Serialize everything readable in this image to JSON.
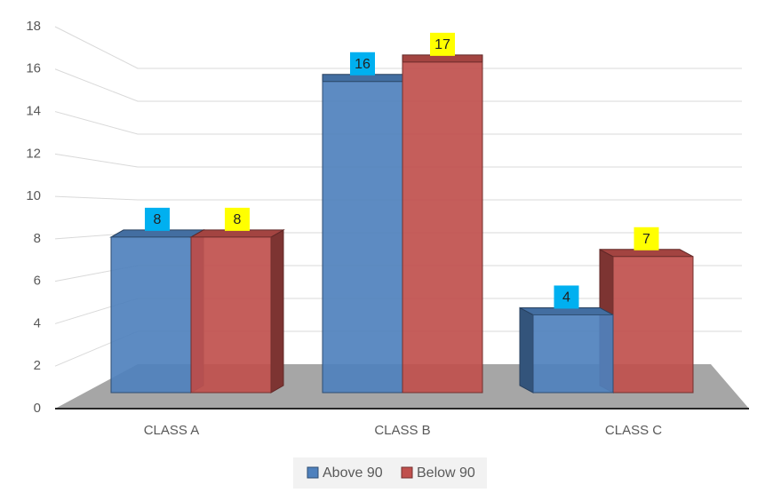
{
  "chart_data": {
    "type": "bar3d",
    "categories": [
      "CLASS A",
      "CLASS B",
      "CLASS C"
    ],
    "series": [
      {
        "name": "Above 90",
        "color": "#4f81bd",
        "label_color": "#00b0f0",
        "values": [
          8,
          16,
          4
        ]
      },
      {
        "name": "Below 90",
        "color": "#c0504d",
        "label_color": "#ffff00",
        "values": [
          8,
          17,
          7
        ]
      }
    ],
    "ylim": [
      0,
      18
    ],
    "yticks": [
      0,
      2,
      4,
      6,
      8,
      10,
      12,
      14,
      16,
      18
    ],
    "grid": true,
    "legend": "bottom"
  }
}
